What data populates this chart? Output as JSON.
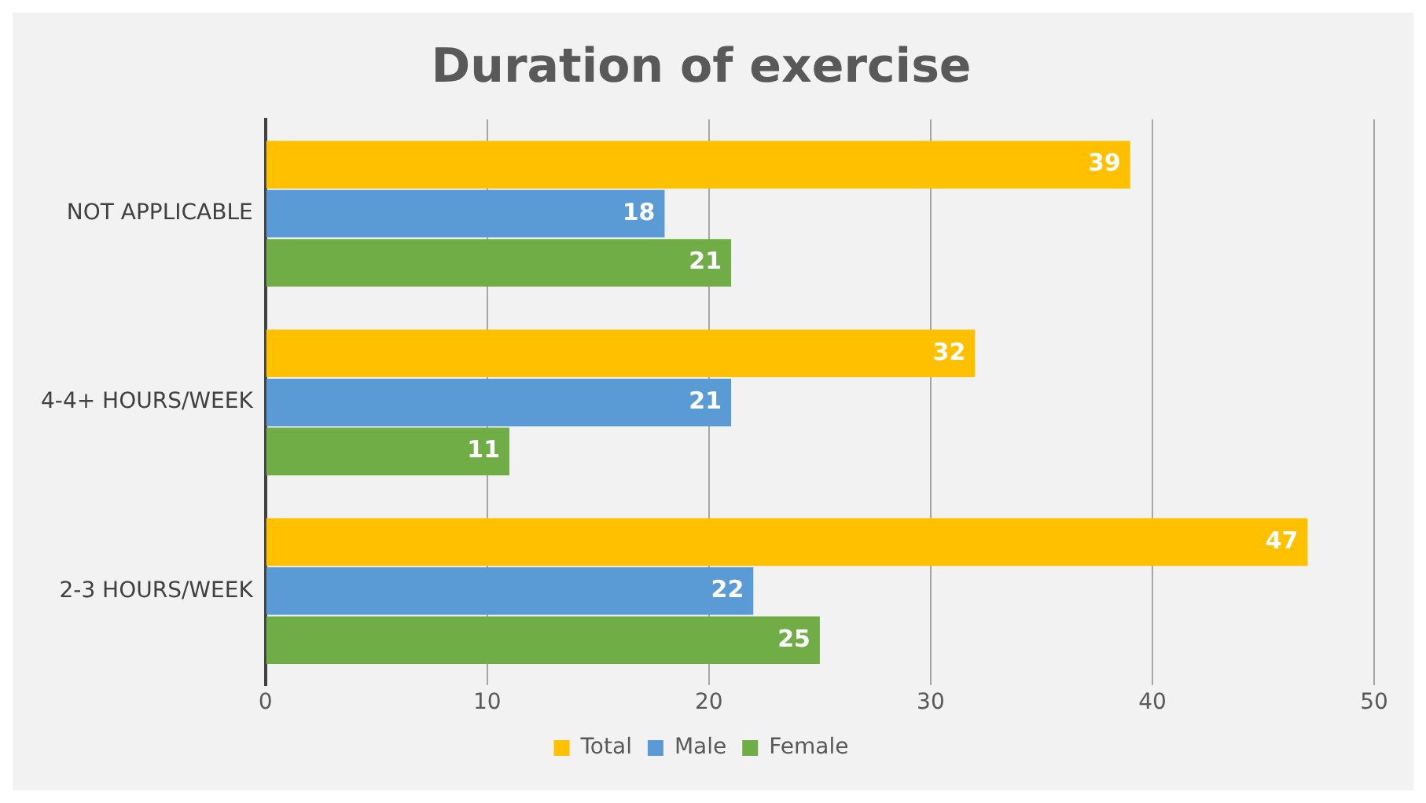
{
  "chart_data": {
    "type": "bar",
    "orientation": "horizontal",
    "title": "Duration of exercise",
    "categories": [
      "NOT APPLICABLE",
      "4-4+ HOURS/WEEK",
      "2-3 HOURS/WEEK"
    ],
    "series": [
      {
        "name": "Total",
        "color": "#ffc000",
        "values": [
          39,
          32,
          47
        ]
      },
      {
        "name": "Male",
        "color": "#5b9bd5",
        "values": [
          18,
          21,
          22
        ]
      },
      {
        "name": "Female",
        "color": "#70ad47",
        "values": [
          21,
          11,
          25
        ]
      }
    ],
    "xlim": [
      0,
      50
    ],
    "xticks": [
      0,
      10,
      20,
      30,
      40,
      50
    ],
    "grid": "x",
    "legend": "bottom",
    "data_labels": true
  }
}
